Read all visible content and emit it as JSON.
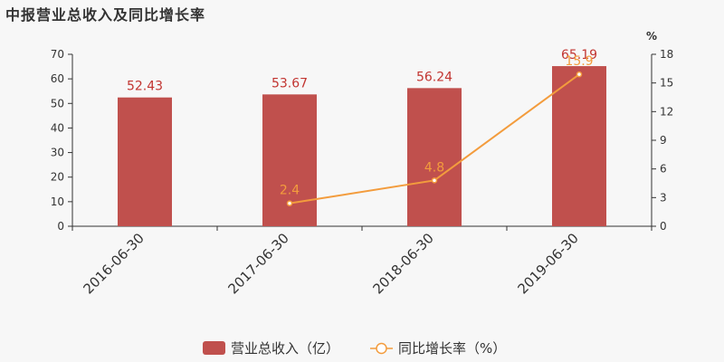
{
  "title": "中报营业总收入及同比增长率",
  "colors": {
    "bar": "#c0504d",
    "line": "#f39c3d",
    "axis": "#333333"
  },
  "chart_data": {
    "type": "bar",
    "categories": [
      "2016-06-30",
      "2017-06-30",
      "2018-06-30",
      "2019-06-30"
    ],
    "series": [
      {
        "name": "营业总收入（亿）",
        "type": "bar",
        "axis": "left",
        "values": [
          52.43,
          53.67,
          56.24,
          65.19
        ],
        "labels": [
          "52.43",
          "53.67",
          "56.24",
          "65.19"
        ]
      },
      {
        "name": "同比增长率（%）",
        "type": "line",
        "axis": "right",
        "values": [
          null,
          2.4,
          4.8,
          15.9
        ],
        "labels": [
          "",
          "2.4",
          "4.8",
          "15.9"
        ]
      }
    ],
    "y_left": {
      "min": 0,
      "max": 70,
      "ticks": [
        0,
        10,
        20,
        30,
        40,
        50,
        60,
        70
      ]
    },
    "y_right": {
      "label": "%",
      "min": 0,
      "max": 18,
      "ticks": [
        0,
        3,
        6,
        9,
        12,
        15,
        18
      ]
    },
    "legend": "bottom"
  }
}
